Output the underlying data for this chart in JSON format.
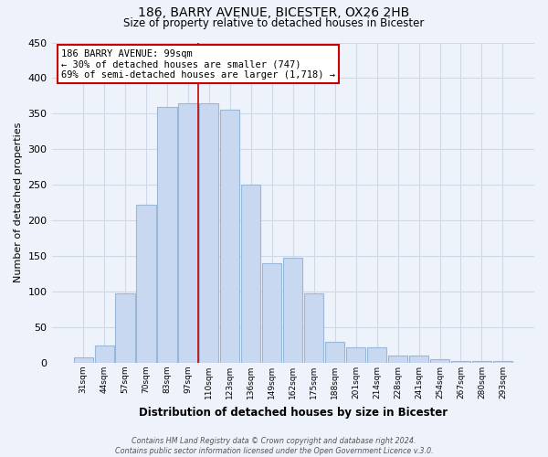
{
  "title": "186, BARRY AVENUE, BICESTER, OX26 2HB",
  "subtitle": "Size of property relative to detached houses in Bicester",
  "xlabel": "Distribution of detached houses by size in Bicester",
  "ylabel": "Number of detached properties",
  "bar_color": "#c8d8f0",
  "bar_edge_color": "#99b8d8",
  "categories": [
    "31sqm",
    "44sqm",
    "57sqm",
    "70sqm",
    "83sqm",
    "97sqm",
    "110sqm",
    "123sqm",
    "136sqm",
    "149sqm",
    "162sqm",
    "175sqm",
    "188sqm",
    "201sqm",
    "214sqm",
    "228sqm",
    "241sqm",
    "254sqm",
    "267sqm",
    "280sqm",
    "293sqm"
  ],
  "values": [
    8,
    25,
    98,
    222,
    360,
    365,
    365,
    355,
    250,
    140,
    148,
    97,
    30,
    22,
    22,
    10,
    10,
    5,
    3,
    3,
    3
  ],
  "ylim": [
    0,
    450
  ],
  "yticks": [
    0,
    50,
    100,
    150,
    200,
    250,
    300,
    350,
    400,
    450
  ],
  "property_line_color": "#cc0000",
  "annotation_text": "186 BARRY AVENUE: 99sqm\n← 30% of detached houses are smaller (747)\n69% of semi-detached houses are larger (1,718) →",
  "annotation_box_color": "white",
  "annotation_box_edge": "#cc0000",
  "footer": "Contains HM Land Registry data © Crown copyright and database right 2024.\nContains public sector information licensed under the Open Government Licence v.3.0.",
  "background_color": "#eef2fa",
  "grid_color": "#d0d8e8"
}
